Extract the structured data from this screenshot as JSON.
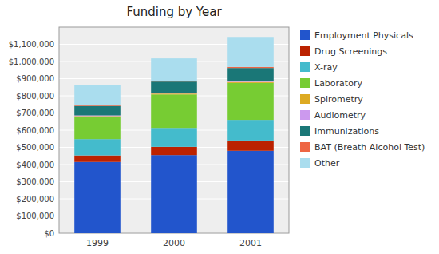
{
  "chart_data": {
    "type": "bar",
    "title": "Funding by Year",
    "categories": [
      "1999",
      "2000",
      "2001"
    ],
    "series": [
      {
        "name": "Employment Physicals",
        "color": "#2255CC",
        "values": [
          415000,
          455000,
          480000
        ]
      },
      {
        "name": "Drug Screenings",
        "color": "#BB2200",
        "values": [
          38000,
          48000,
          60000
        ]
      },
      {
        "name": "X-ray",
        "color": "#44BBCC",
        "values": [
          95000,
          110000,
          120000
        ]
      },
      {
        "name": "Laboratory",
        "color": "#77CC33",
        "values": [
          130000,
          195000,
          215000
        ]
      },
      {
        "name": "Spirometry",
        "color": "#DDAA22",
        "values": [
          4000,
          5000,
          6000
        ]
      },
      {
        "name": "Audiometry",
        "color": "#CC99EE",
        "values": [
          4000,
          5000,
          6000
        ]
      },
      {
        "name": "Immunizations",
        "color": "#1A7777",
        "values": [
          55000,
          65000,
          75000
        ]
      },
      {
        "name": "BAT (Breath Alcohol Test)",
        "color": "#EE6644",
        "values": [
          4000,
          5000,
          6000
        ]
      },
      {
        "name": "Other",
        "color": "#AADDEE",
        "values": [
          120000,
          130000,
          175000
        ]
      }
    ],
    "ylim": [
      0,
      1200000
    ],
    "yticks": [
      {
        "value": 0,
        "label": "$0"
      },
      {
        "value": 100000,
        "label": "$100,000"
      },
      {
        "value": 200000,
        "label": "$200,000"
      },
      {
        "value": 300000,
        "label": "$300,000"
      },
      {
        "value": 400000,
        "label": "$400,000"
      },
      {
        "value": 500000,
        "label": "$500,000"
      },
      {
        "value": 600000,
        "label": "$600,000"
      },
      {
        "value": 700000,
        "label": "$700,000"
      },
      {
        "value": 800000,
        "label": "$800,000"
      },
      {
        "value": 900000,
        "label": "$900,000"
      },
      {
        "value": 1000000,
        "label": "$1,000,000"
      },
      {
        "value": 1100000,
        "label": "$1,100,000"
      }
    ],
    "grid": true,
    "stacked": true,
    "legend": "right"
  }
}
